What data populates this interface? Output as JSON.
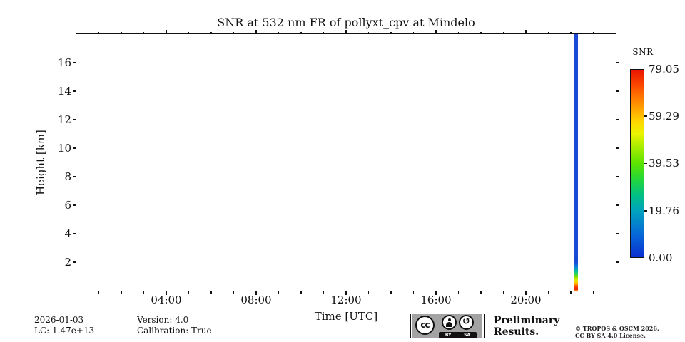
{
  "chart_data": {
    "type": "heatmap",
    "title": "SNR at 532 nm FR of pollyxt_cpv at Mindelo",
    "xlabel": "Time [UTC]",
    "ylabel": "Height [km]",
    "xlim_hours": [
      0,
      24
    ],
    "ylim_km": [
      0,
      18
    ],
    "grid": false,
    "plot_background": "white / no data for nearly the whole day",
    "x_major_ticks": [
      {
        "hour": 4,
        "label": "04:00"
      },
      {
        "hour": 8,
        "label": "08:00"
      },
      {
        "hour": 12,
        "label": "12:00"
      },
      {
        "hour": 16,
        "label": "16:00"
      },
      {
        "hour": 20,
        "label": "20:00"
      }
    ],
    "x_minor_tick_step_hours": 1,
    "y_major_ticks": [
      {
        "km": 2,
        "label": "2"
      },
      {
        "km": 4,
        "label": "4"
      },
      {
        "km": 6,
        "label": "6"
      },
      {
        "km": 8,
        "label": "8"
      },
      {
        "km": 10,
        "label": "10"
      },
      {
        "km": 12,
        "label": "12"
      },
      {
        "km": 14,
        "label": "14"
      },
      {
        "km": 16,
        "label": "16"
      }
    ],
    "colorbar": {
      "label": "SNR",
      "min": 0.0,
      "max": 79.05,
      "colormap": "jet",
      "ticks": [
        {
          "value": 79.05,
          "label": "79.05"
        },
        {
          "value": 59.29,
          "label": "59.29"
        },
        {
          "value": 39.53,
          "label": "39.53"
        },
        {
          "value": 19.76,
          "label": "19.76"
        },
        {
          "value": 0.0,
          "label": "0.00"
        }
      ]
    },
    "series": [
      {
        "name": "single measured lidar profile column",
        "time_window_utc": [
          "22:08",
          "22:19"
        ],
        "points": [
          {
            "height_km": 0.2,
            "snr": 79
          },
          {
            "height_km": 0.4,
            "snr": 70
          },
          {
            "height_km": 0.6,
            "snr": 58
          },
          {
            "height_km": 0.8,
            "snr": 48
          },
          {
            "height_km": 1.0,
            "snr": 40
          },
          {
            "height_km": 1.3,
            "snr": 28
          },
          {
            "height_km": 1.6,
            "snr": 16
          },
          {
            "height_km": 2.0,
            "snr": 7
          },
          {
            "height_km": 5.0,
            "snr": 2
          },
          {
            "height_km": 10.0,
            "snr": 1
          },
          {
            "height_km": 18.0,
            "snr": 0
          }
        ]
      }
    ]
  },
  "footer": {
    "date": "2026-01-03",
    "lc": "LC: 1.47e+13",
    "version": "Version: 4.0",
    "calibration": "Calibration: True",
    "preliminary_line1": "Preliminary",
    "preliminary_line2": "Results.",
    "copyright_line1": "© TROPOS & OSCM 2026.",
    "copyright_line2": "CC BY SA 4.0 License."
  },
  "license_badge": {
    "cc_label": "cc",
    "by_label": "BY",
    "sa_label": "SA",
    "sa_arrow": "↺"
  },
  "colors": {
    "preliminary_red": "#f4382a",
    "profile_blue": "#1a49d8",
    "axis_color": "#111111",
    "badge_gray": "#a3a3a3"
  }
}
